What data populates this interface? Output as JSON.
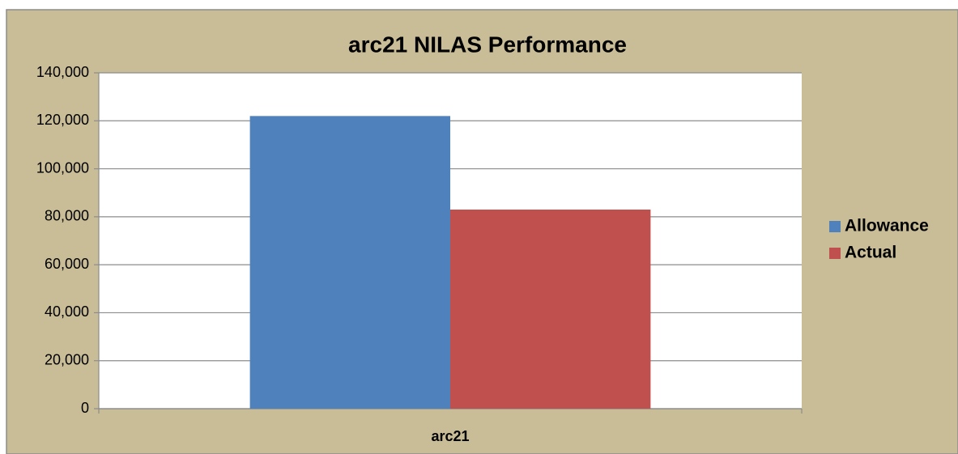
{
  "chart_data": {
    "type": "bar",
    "title": "arc21 NILAS Performance",
    "categories": [
      "arc21"
    ],
    "series": [
      {
        "name": "Allowance",
        "color": "#4f81bd",
        "values": [
          122000
        ]
      },
      {
        "name": "Actual",
        "color": "#c0504d",
        "values": [
          83000
        ]
      }
    ],
    "ylim": [
      0,
      140000
    ],
    "yticks": [
      0,
      {
        "value": 20000,
        "label": "20,000"
      },
      {
        "value": 40000,
        "label": "40,000"
      },
      {
        "value": 60000,
        "label": "60,000"
      },
      {
        "value": 80000,
        "label": "80,000"
      },
      {
        "value": 100000,
        "label": "100,000"
      },
      {
        "value": 120000,
        "label": "120,000"
      },
      {
        "value": 140000,
        "label": "140,000"
      }
    ],
    "grid": true,
    "legend": "right"
  }
}
